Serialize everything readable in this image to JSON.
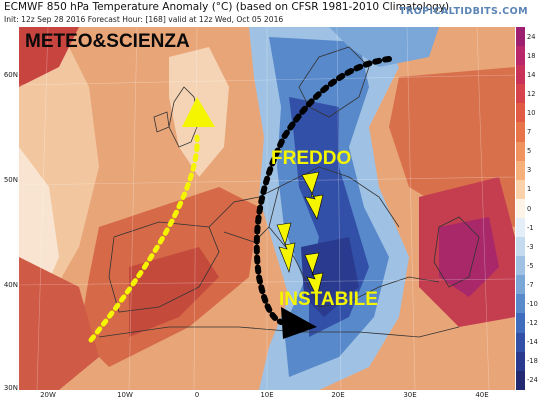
{
  "header": {
    "title": "ECMWF 850 hPa Temperature Anomaly (°C) (based on CFSR 1981-2010 Climatology)",
    "subtitle": "Init: 12z Sep 28 2016   Forecast Hour: [168]   valid at 12z Wed, Oct 05 2016",
    "brand": "TROPICALTIDBITS.COM"
  },
  "map": {
    "watermark": "METEO&SCIENZA",
    "label_cold": "FREDDO",
    "label_unstable": "INSTABILE",
    "lat_labels": [
      "60N",
      "50N",
      "40N",
      "30N"
    ],
    "lon_labels": [
      "20W",
      "10W",
      "0",
      "10E",
      "20E",
      "30E",
      "40E"
    ],
    "arrow_colors": {
      "warm_flow": "#f5f500",
      "cold_flow": "#000000",
      "lightning": "#f5f500"
    },
    "icons": [
      "warm-flow-arrow",
      "cold-flow-arrow",
      "lightning-bolt"
    ]
  },
  "colorbar": {
    "labels": [
      "24",
      "18",
      "14",
      "12",
      "10",
      "7",
      "5",
      "3",
      "1",
      "0",
      "-1",
      "-3",
      "-5",
      "-7",
      "-10",
      "-12",
      "-14",
      "-18",
      "-24"
    ],
    "colors": [
      "#9c1f72",
      "#b8276a",
      "#c8325a",
      "#d6434c",
      "#e05a44",
      "#e8744a",
      "#f0935e",
      "#f6b07c",
      "#fad1a8",
      "#fdf3e6",
      "#e3eef8",
      "#c3daef",
      "#9fc2e4",
      "#7aa7d8",
      "#5889cb",
      "#3f6cbc",
      "#3250a8",
      "#2a3a8e",
      "#232a72"
    ]
  }
}
